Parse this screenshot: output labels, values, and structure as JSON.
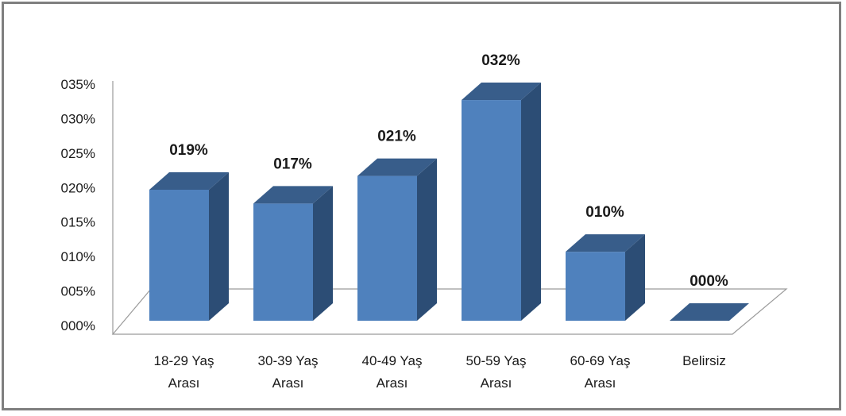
{
  "chart_data": {
    "type": "bar",
    "style": "3d-column",
    "categories": [
      [
        "18-29 Yaş",
        "Arası"
      ],
      [
        "30-39 Yaş",
        "Arası"
      ],
      [
        "40-49 Yaş",
        "Arası"
      ],
      [
        "50-59 Yaş",
        "Arası"
      ],
      [
        "60-69 Yaş",
        "Arası"
      ],
      [
        "Belirsiz"
      ]
    ],
    "values": [
      19,
      17,
      21,
      32,
      10,
      0
    ],
    "data_labels": [
      "019%",
      "017%",
      "021%",
      "032%",
      "010%",
      "000%"
    ],
    "y_ticks": [
      "000%",
      "005%",
      "010%",
      "015%",
      "020%",
      "025%",
      "030%",
      "035%"
    ],
    "ylim": [
      0,
      35
    ],
    "title": "",
    "xlabel": "",
    "ylabel": "",
    "grid": false,
    "legend": "none",
    "colors": {
      "front": "#4f81bd",
      "side": "#2c4d75",
      "top": "#385d8a",
      "axis": "#9a9a9a",
      "border": "#7f7f7f"
    }
  }
}
